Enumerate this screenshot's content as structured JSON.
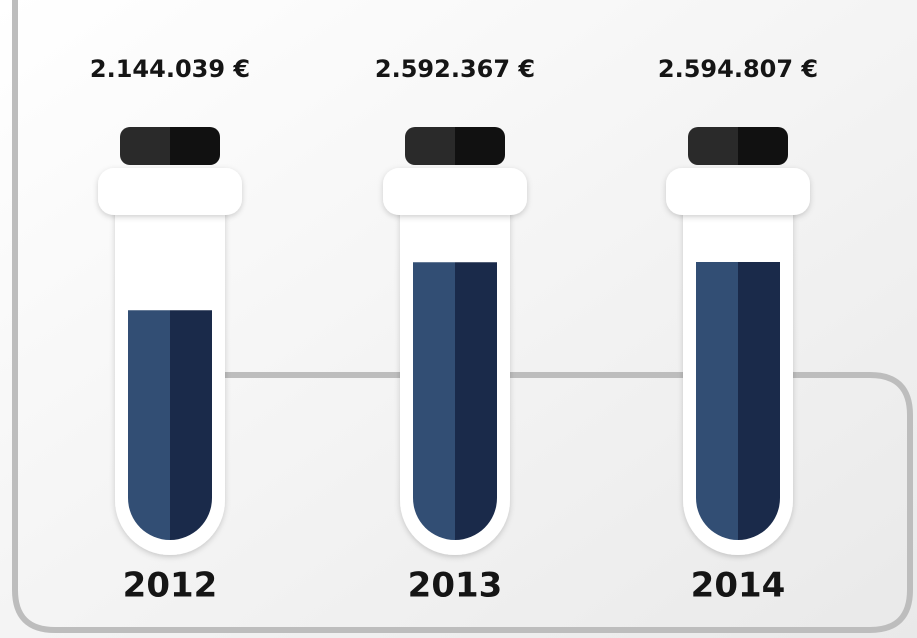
{
  "chart_data": {
    "type": "tube",
    "categories": [
      "2012",
      "2013",
      "2014"
    ],
    "values": [
      2144039,
      2592367,
      2594807
    ],
    "value_labels": [
      "2.144.039 €",
      "2.592.367 €",
      "2.594.807 €"
    ],
    "color": "#1a2a4a"
  }
}
